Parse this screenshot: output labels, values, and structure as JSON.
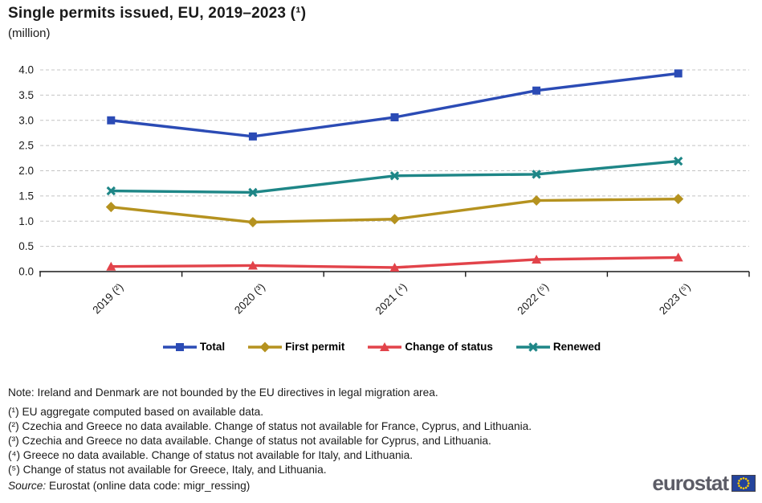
{
  "title": "Single permits issued, EU, 2019–2023 (¹)",
  "subtitle": "(million)",
  "chart_data": {
    "type": "line",
    "categories": [
      "2019 (²)",
      "2020 (³)",
      "2021 (⁴)",
      "2022 (⁵)",
      "2023 (⁵)"
    ],
    "series": [
      {
        "name": "Total",
        "marker": "square",
        "color": "#2B4BB5",
        "values": [
          3.0,
          2.68,
          3.06,
          3.59,
          3.93
        ]
      },
      {
        "name": "First permit",
        "marker": "diamond",
        "color": "#B5921F",
        "values": [
          1.28,
          0.98,
          1.04,
          1.41,
          1.44
        ]
      },
      {
        "name": "Change of status",
        "marker": "triangle",
        "color": "#E2434A",
        "values": [
          0.1,
          0.12,
          0.08,
          0.24,
          0.28
        ]
      },
      {
        "name": "Renewed",
        "marker": "x",
        "color": "#1E8687",
        "values": [
          1.6,
          1.57,
          1.9,
          1.93,
          2.19
        ]
      }
    ],
    "ylim": [
      0,
      4
    ],
    "ytick_step": 0.5,
    "grid": true,
    "legend_position": "bottom"
  },
  "notes": {
    "note": "Note: Ireland and Denmark are not bounded by the EU directives in legal migration area.",
    "footnotes": [
      "(¹) EU aggregate computed based on available data.",
      "(²) Czechia and Greece no data available. Change of status not available for France, Cyprus, and Lithuania.",
      "(³) Czechia and Greece no data available. Change of status not available for Cyprus, and Lithuania.",
      "(⁴) Greece no data available. Change of status not available for Italy, and Lithuania.",
      "(⁵) Change of status not available for Greece, Italy, and Lithuania."
    ],
    "source_label": "Source:",
    "source_text": " Eurostat (online data code: migr_ressing)"
  },
  "branding": {
    "logo_text": "eurostat",
    "flag_blue": "#24439B",
    "star_yellow": "#FFCC00"
  },
  "style_colors": {
    "gridline": "#C4C4C4",
    "axis": "#1A1A1A"
  }
}
